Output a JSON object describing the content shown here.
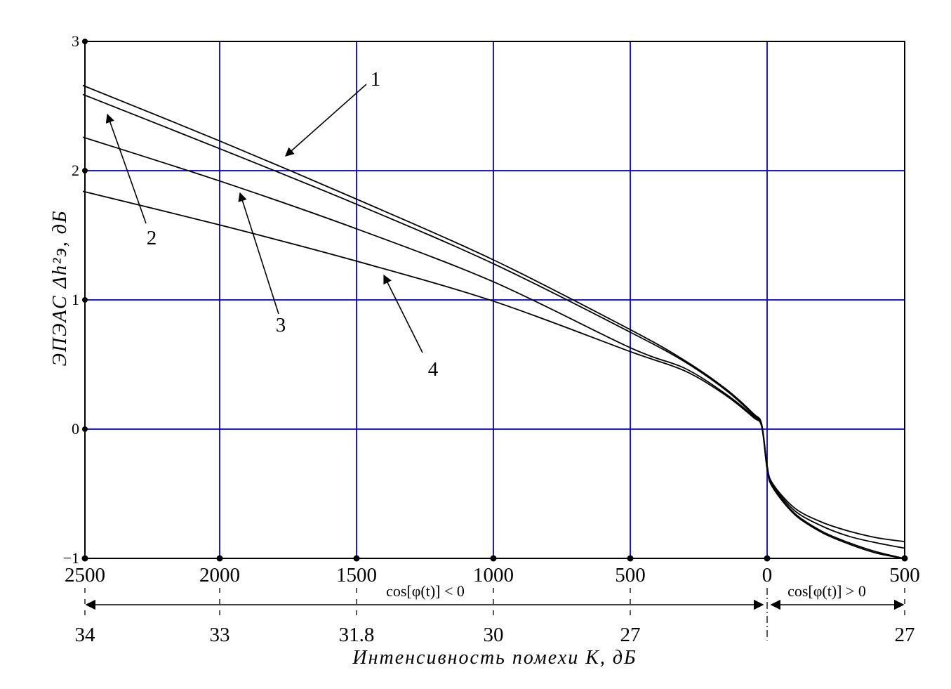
{
  "chart_data": {
    "type": "line",
    "title": "",
    "xlabel": "Интенсивность помехи K, дБ",
    "ylabel": "ЭПЭАС Δh²э, дБ",
    "ylim": [
      -1,
      3
    ],
    "yticks": [
      -1,
      0,
      1,
      2,
      3
    ],
    "xticks_top": [
      "2500",
      "2000",
      "1500",
      "1000",
      "500",
      "0",
      "500"
    ],
    "xticks_bottom": [
      "34",
      "33",
      "31.8",
      "30",
      "27",
      "27"
    ],
    "region_left_label": "cos[φ(t)] < 0",
    "region_right_label": "cos[φ(t)] > 0",
    "grid": true,
    "grid_color": "#0000cc",
    "x_note": "x is the top-axis value, signed: negative left of 0 (cos<0 region), positive right of 0",
    "series": [
      {
        "name": "1",
        "color": "#000000",
        "x": [
          -2500,
          -2000,
          -1500,
          -1000,
          -500,
          -300,
          -150,
          -50,
          -20,
          0,
          20,
          100,
          200,
          300,
          400,
          500
        ],
        "y": [
          2.66,
          2.23,
          1.78,
          1.31,
          0.77,
          0.53,
          0.31,
          0.12,
          0.04,
          -0.28,
          -0.42,
          -0.61,
          -0.72,
          -0.79,
          -0.84,
          -0.87
        ]
      },
      {
        "name": "2",
        "color": "#000000",
        "x": [
          -2500,
          -2000,
          -1500,
          -1000,
          -500,
          -300,
          -150,
          -50,
          -20,
          0,
          20,
          100,
          200,
          300,
          400,
          500
        ],
        "y": [
          2.59,
          2.17,
          1.74,
          1.28,
          0.75,
          0.52,
          0.3,
          0.11,
          0.03,
          -0.29,
          -0.43,
          -0.63,
          -0.75,
          -0.83,
          -0.88,
          -0.92
        ]
      },
      {
        "name": "3",
        "color": "#000000",
        "x": [
          -2500,
          -2000,
          -1500,
          -1000,
          -500,
          -300,
          -150,
          -50,
          -20,
          0,
          20,
          100,
          200,
          300,
          400,
          500
        ],
        "y": [
          2.26,
          1.92,
          1.55,
          1.14,
          0.63,
          0.47,
          0.27,
          0.1,
          0.03,
          -0.3,
          -0.44,
          -0.65,
          -0.79,
          -0.88,
          -0.95,
          -1.0
        ]
      },
      {
        "name": "4",
        "color": "#000000",
        "x": [
          -2500,
          -2000,
          -1500,
          -1000,
          -500,
          -300,
          -150,
          -50,
          -20,
          0,
          20,
          100,
          200,
          300,
          400,
          500
        ],
        "y": [
          1.84,
          1.58,
          1.3,
          0.99,
          0.6,
          0.45,
          0.26,
          0.09,
          0.02,
          -0.31,
          -0.45,
          -0.66,
          -0.8,
          -0.89,
          -0.96,
          -1.0
        ]
      }
    ]
  }
}
